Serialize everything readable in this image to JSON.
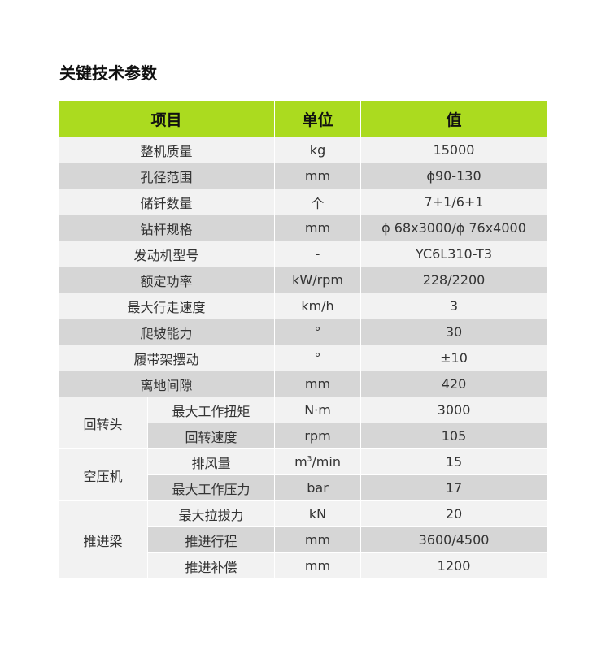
{
  "title": "关键技术参数",
  "headers": [
    "项目",
    "单位",
    "值"
  ],
  "rows": [
    {
      "item": "整机质量",
      "unit": "kg",
      "value": "15000"
    },
    {
      "item": "孔径范围",
      "unit": "mm",
      "value": "ϕ90-130"
    },
    {
      "item": "储钎数量",
      "unit": "个",
      "value": "7+1/6+1"
    },
    {
      "item": "钻杆规格",
      "unit": "mm",
      "value": "ϕ 68x3000/ϕ 76x4000"
    },
    {
      "item": "发动机型号",
      "unit": "-",
      "value": "YC6L310-T3"
    },
    {
      "item": "额定功率",
      "unit": "kW/rpm",
      "value": "228/2200"
    },
    {
      "item": "最大行走速度",
      "unit": "km/h",
      "value": "3"
    },
    {
      "item": "爬坡能力",
      "unit": "°",
      "value": "30"
    },
    {
      "item": "履带架摆动",
      "unit": "°",
      "value": "±10"
    },
    {
      "item": "离地间隙",
      "unit": "mm",
      "value": "420"
    }
  ],
  "groups": [
    {
      "label": "回转头",
      "rows": [
        {
          "item": "最大工作扭矩",
          "unit": "N·m",
          "value": "3000"
        },
        {
          "item": "回转速度",
          "unit": "rpm",
          "value": "105"
        }
      ]
    },
    {
      "label": "空压机",
      "rows": [
        {
          "item": "排风量",
          "unit_base": "m",
          "unit_sup": "3",
          "unit_rest": "/min",
          "value": "15"
        },
        {
          "item": "最大工作压力",
          "unit": "bar",
          "value": "17"
        }
      ]
    },
    {
      "label": "推进梁",
      "rows": [
        {
          "item": "最大拉拔力",
          "unit": "kN",
          "value": "20"
        },
        {
          "item": "推进行程",
          "unit": "mm",
          "value": "3600/4500"
        },
        {
          "item": "推进补偿",
          "unit": "mm",
          "value": "1200"
        }
      ]
    }
  ],
  "colors": {
    "header": "#abdb1f",
    "row_light": "#f2f2f2",
    "row_dark": "#d6d6d6"
  }
}
